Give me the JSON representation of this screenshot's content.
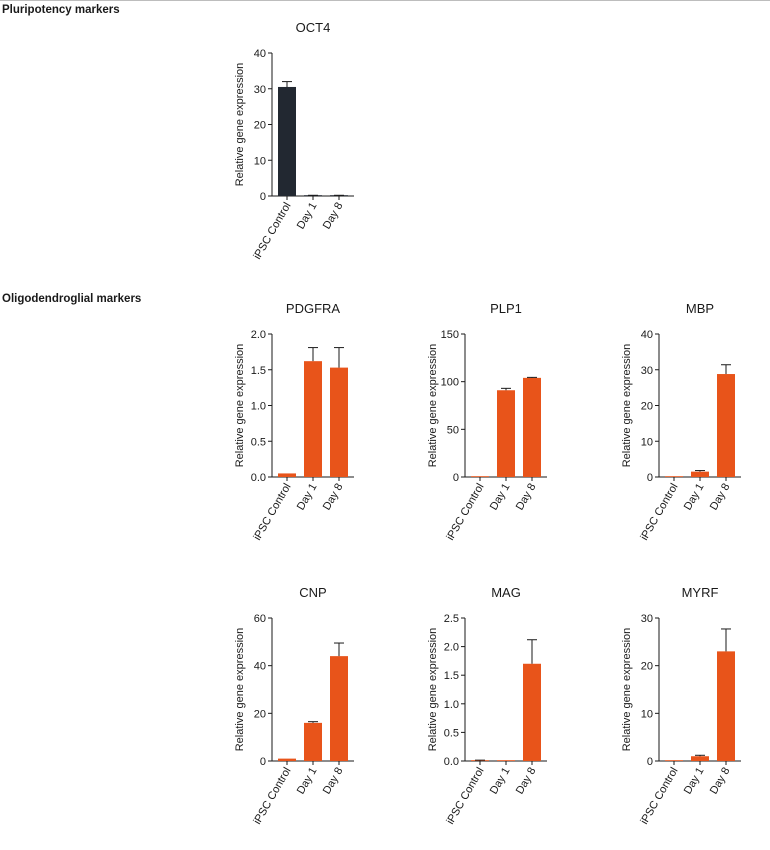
{
  "sections": {
    "pluripotency": "Pluripotency markers",
    "oligodendroglial": "Oligodendroglial markers"
  },
  "colors": {
    "control_bar": "#222831",
    "treated_bar": "#e8541a",
    "axis": "#1a1a1a"
  },
  "chart_data": [
    {
      "type": "bar",
      "title": "OCT4",
      "ylabel": "Relative gene expression",
      "categories": [
        "iPSC Control",
        "Day 1",
        "Day 8"
      ],
      "values": [
        30.5,
        0.1,
        0.1
      ],
      "error": [
        1.5,
        0.1,
        0.1
      ],
      "ylim": [
        0,
        40
      ],
      "yticks": [
        0,
        10,
        20,
        30,
        40
      ],
      "ytick_labels": [
        "0",
        "10",
        "20",
        "30",
        "40"
      ],
      "bar_colors": [
        "#222831",
        "#222831",
        "#222831"
      ]
    },
    {
      "type": "bar",
      "title": "PDGFRA",
      "ylabel": "Relative gene expression",
      "categories": [
        "iPSC Control",
        "Day 1",
        "Day 8"
      ],
      "values": [
        0.05,
        1.62,
        1.53
      ],
      "error": [
        0,
        0.19,
        0.28
      ],
      "ylim": [
        0,
        2.0
      ],
      "yticks": [
        0,
        0.5,
        1.0,
        1.5,
        2.0
      ],
      "ytick_labels": [
        "0.0",
        "0.5",
        "1.0",
        "1.5",
        "2.0"
      ],
      "bar_colors": [
        "#e8541a",
        "#e8541a",
        "#e8541a"
      ]
    },
    {
      "type": "bar",
      "title": "PLP1",
      "ylabel": "Relative gene expression",
      "categories": [
        "iPSC Control",
        "Day 1",
        "Day 8"
      ],
      "values": [
        0.8,
        91,
        104
      ],
      "error": [
        0,
        2,
        0.5
      ],
      "ylim": [
        0,
        150
      ],
      "yticks": [
        0,
        50,
        100,
        150
      ],
      "ytick_labels": [
        "0",
        "50",
        "100",
        "150"
      ],
      "bar_colors": [
        "#e8541a",
        "#e8541a",
        "#e8541a"
      ]
    },
    {
      "type": "bar",
      "title": "MBP",
      "ylabel": "Relative gene expression",
      "categories": [
        "iPSC Control",
        "Day 1",
        "Day 8"
      ],
      "values": [
        0.1,
        1.5,
        28.8
      ],
      "error": [
        0,
        0.3,
        2.6
      ],
      "ylim": [
        0,
        40
      ],
      "yticks": [
        0,
        10,
        20,
        30,
        40
      ],
      "ytick_labels": [
        "0",
        "10",
        "20",
        "30",
        "40"
      ],
      "bar_colors": [
        "#e8541a",
        "#e8541a",
        "#e8541a"
      ]
    },
    {
      "type": "bar",
      "title": "CNP",
      "ylabel": "Relative gene expression",
      "categories": [
        "iPSC Control",
        "Day 1",
        "Day 8"
      ],
      "values": [
        1.0,
        16.0,
        44.0
      ],
      "error": [
        0,
        0.5,
        5.5
      ],
      "ylim": [
        0,
        60
      ],
      "yticks": [
        0,
        20,
        40,
        60
      ],
      "ytick_labels": [
        "0",
        "20",
        "40",
        "60"
      ],
      "bar_colors": [
        "#e8541a",
        "#e8541a",
        "#e8541a"
      ]
    },
    {
      "type": "bar",
      "title": "MAG",
      "ylabel": "Relative gene expression",
      "categories": [
        "iPSC Control",
        "Day 1",
        "Day 8"
      ],
      "values": [
        0.005,
        0.005,
        1.7
      ],
      "error": [
        0.01,
        0,
        0.42
      ],
      "ylim": [
        0,
        2.5
      ],
      "yticks": [
        0,
        0.5,
        1.0,
        1.5,
        2.0,
        2.5
      ],
      "ytick_labels": [
        "0.0",
        "0.5",
        "1.0",
        "1.5",
        "2.0",
        "2.5"
      ],
      "bar_colors": [
        "#e8541a",
        "#e8541a",
        "#e8541a"
      ]
    },
    {
      "type": "bar",
      "title": "MYRF",
      "ylabel": "Relative gene expression",
      "categories": [
        "iPSC Control",
        "Day 1",
        "Day 8"
      ],
      "values": [
        0.1,
        1.0,
        23.0
      ],
      "error": [
        0,
        0.2,
        4.7
      ],
      "ylim": [
        0,
        30
      ],
      "yticks": [
        0,
        10,
        20,
        30
      ],
      "ytick_labels": [
        "0",
        "10",
        "20",
        "30"
      ],
      "bar_colors": [
        "#e8541a",
        "#e8541a",
        "#e8541a"
      ]
    }
  ]
}
